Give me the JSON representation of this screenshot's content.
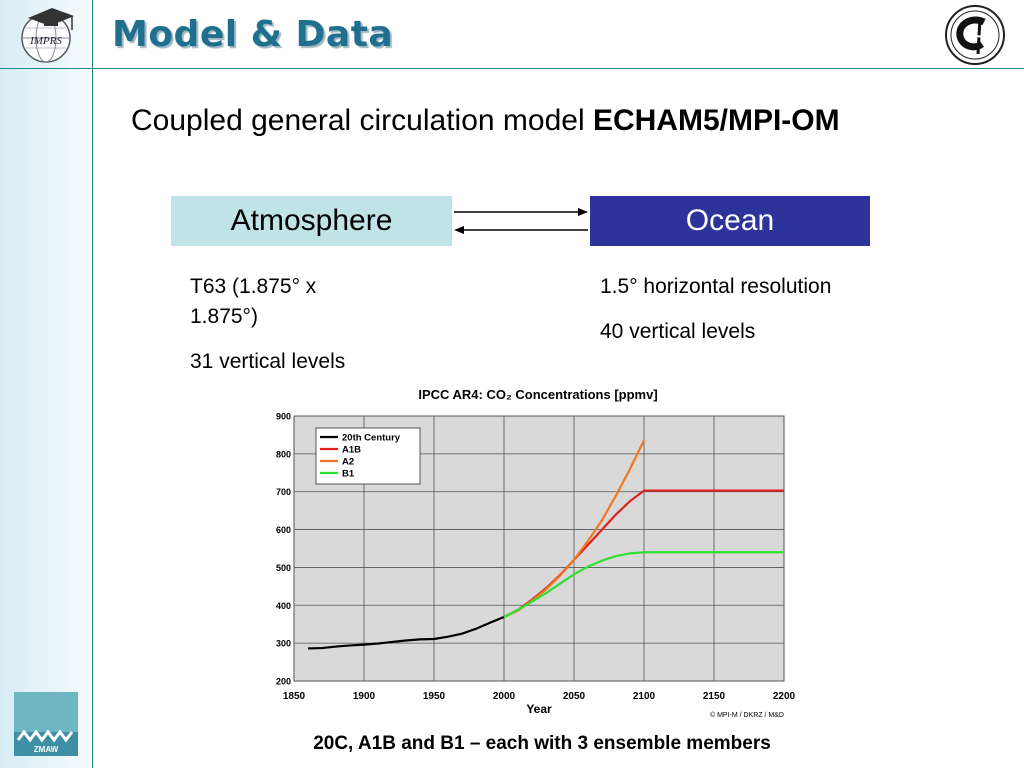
{
  "slide": {
    "title": "Model & Data",
    "subtitle_prefix": "Coupled general circulation model ",
    "subtitle_bold": "ECHAM5/MPI-OM",
    "atmosphere_label": "Atmosphere",
    "ocean_label": "Ocean",
    "atmosphere_resolution": "T63 (1.875° x 1.875°)",
    "atmosphere_levels": "31 vertical levels",
    "ocean_resolution": "1.5° horizontal resolution",
    "ocean_levels": "40 vertical levels",
    "caption": "20C, A1B and B1 – each with 3 ensemble members",
    "logo_left_text": "IMPRS",
    "logo_bottom_text": "ZMAW",
    "colors": {
      "title": "#1f6f8f",
      "ocean_box": "#2e3399",
      "atmosphere_box": "#bfe3e6",
      "accent_line": "#1f8a8a"
    }
  },
  "chart_data": {
    "type": "line",
    "title": "IPCC AR4:  CO₂ Concentrations [ppmv]",
    "xlabel": "Year",
    "ylabel": "",
    "xlim": [
      1850,
      2200
    ],
    "ylim": [
      200,
      900
    ],
    "xticks": [
      "1850",
      "1900",
      "1950",
      "2000",
      "2050",
      "2100",
      "2150",
      "2200"
    ],
    "yticks": [
      "200",
      "300",
      "400",
      "500",
      "600",
      "700",
      "800",
      "900"
    ],
    "grid": true,
    "legend_position": "top-left",
    "credit": "© MPI-M / DKRZ / M&D",
    "series": [
      {
        "name": "20th Century",
        "color": "#000000",
        "x": [
          1860,
          1870,
          1880,
          1890,
          1900,
          1910,
          1920,
          1930,
          1940,
          1950,
          1960,
          1970,
          1980,
          1990,
          2000
        ],
        "y": [
          286,
          287,
          291,
          294,
          296,
          299,
          303,
          307,
          310,
          311,
          317,
          325,
          338,
          354,
          369
        ]
      },
      {
        "name": "A1B",
        "color": "#e02020",
        "x": [
          2000,
          2010,
          2020,
          2030,
          2040,
          2050,
          2060,
          2070,
          2080,
          2090,
          2100,
          2150,
          2200
        ],
        "y": [
          369,
          388,
          415,
          445,
          480,
          520,
          560,
          600,
          640,
          675,
          703,
          703,
          703
        ]
      },
      {
        "name": "A2",
        "color": "#f07820",
        "x": [
          2000,
          2010,
          2020,
          2030,
          2040,
          2050,
          2060,
          2070,
          2080,
          2090,
          2100
        ],
        "y": [
          369,
          386,
          412,
          442,
          478,
          520,
          570,
          625,
          690,
          760,
          836
        ]
      },
      {
        "name": "B1",
        "color": "#30e030",
        "x": [
          2000,
          2010,
          2020,
          2030,
          2040,
          2050,
          2060,
          2070,
          2080,
          2090,
          2100,
          2150,
          2200
        ],
        "y": [
          369,
          388,
          410,
          432,
          457,
          482,
          502,
          518,
          530,
          537,
          540,
          540,
          540
        ]
      }
    ]
  }
}
